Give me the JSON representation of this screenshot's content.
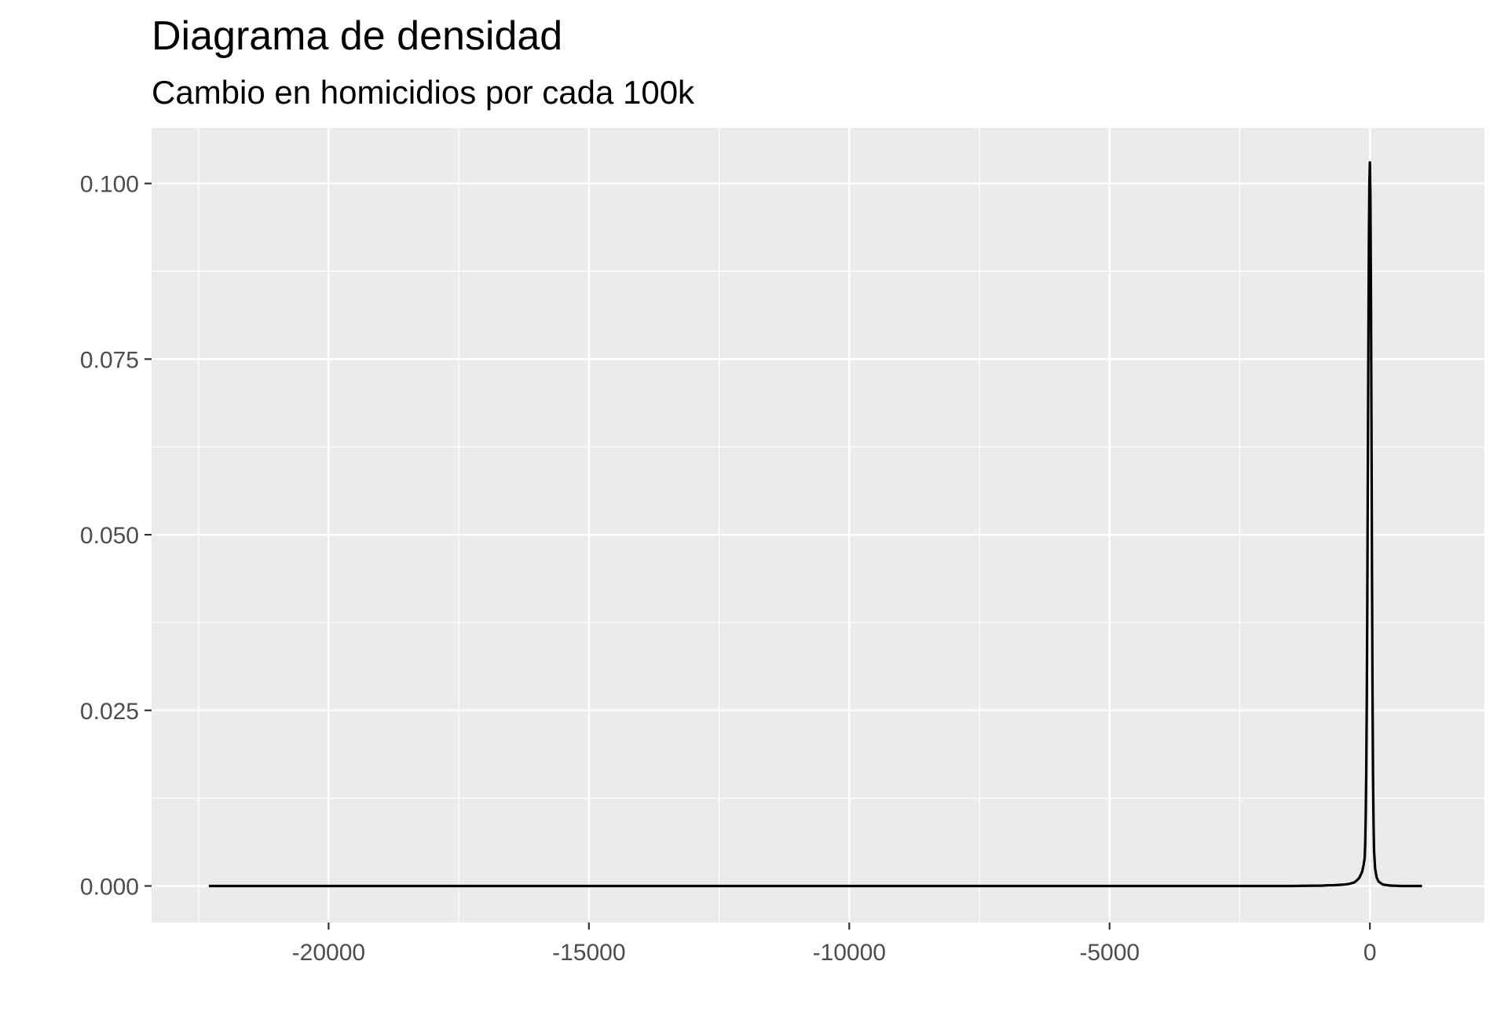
{
  "chart_data": {
    "type": "line",
    "title": "Diagrama de densidad",
    "subtitle": "Cambio en homicidios por cada 100k",
    "xlabel": "",
    "ylabel": "",
    "xlim": [
      -23400,
      2200
    ],
    "ylim": [
      -0.0052,
      0.1079
    ],
    "x_ticks": [
      -20000,
      -15000,
      -10000,
      -5000,
      0
    ],
    "x_tick_labels": [
      "-20000",
      "-15000",
      "-10000",
      "-5000",
      "0"
    ],
    "y_ticks": [
      0,
      0.025,
      0.05,
      0.075,
      0.1
    ],
    "y_tick_labels": [
      "0.000",
      "0.025",
      "0.050",
      "0.075",
      "0.100"
    ],
    "grid": true,
    "panel_background": "#ebebeb",
    "grid_color": "#ffffff",
    "line_color": "#000000",
    "series": [
      {
        "points": [
          [
            -22300,
            0
          ],
          [
            -5000,
            0
          ],
          [
            -1500,
            0
          ],
          [
            -900,
            5e-05
          ],
          [
            -800,
            0.0001
          ],
          [
            -700,
            0.0001
          ],
          [
            -600,
            0.00015
          ],
          [
            -500,
            0.0002
          ],
          [
            -400,
            0.0003
          ],
          [
            -300,
            0.0005
          ],
          [
            -250,
            0.0008
          ],
          [
            -200,
            0.0012
          ],
          [
            -150,
            0.002
          ],
          [
            -120,
            0.003
          ],
          [
            -100,
            0.004
          ],
          [
            -90,
            0.006
          ],
          [
            -80,
            0.01
          ],
          [
            -70,
            0.016
          ],
          [
            -60,
            0.026
          ],
          [
            -50,
            0.04
          ],
          [
            -40,
            0.058
          ],
          [
            -30,
            0.076
          ],
          [
            -20,
            0.091
          ],
          [
            -10,
            0.1
          ],
          [
            0,
            0.103
          ],
          [
            10,
            0.098
          ],
          [
            20,
            0.085
          ],
          [
            30,
            0.066
          ],
          [
            40,
            0.045
          ],
          [
            50,
            0.028
          ],
          [
            60,
            0.016
          ],
          [
            70,
            0.009
          ],
          [
            80,
            0.005
          ],
          [
            100,
            0.0025
          ],
          [
            130,
            0.0012
          ],
          [
            170,
            0.0006
          ],
          [
            250,
            0.0002
          ],
          [
            400,
            5e-05
          ],
          [
            600,
            0
          ],
          [
            1000,
            0
          ]
        ]
      }
    ]
  }
}
